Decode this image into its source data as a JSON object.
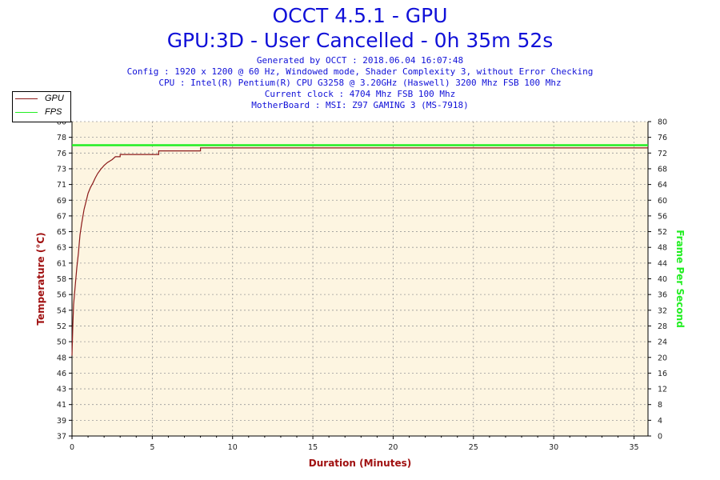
{
  "header": {
    "title": "OCCT 4.5.1 - GPU",
    "subtitle": "GPU:3D - User Cancelled - 0h 35m 52s",
    "info_lines": [
      "Generated by OCCT : 2018.06.04 16:07:48",
      "Config : 1920 x 1200 @ 60 Hz, Windowed mode, Shader Complexity 3, without Error Checking",
      "CPU : Intel(R) Pentium(R) CPU G3258 @ 3.20GHz (Haswell) 3200 Mhz FSB 100 Mhz",
      "Current clock : 4704 Mhz FSB 100 Mhz",
      "MotherBoard : MSI: Z97 GAMING 3 (MS-7918)"
    ]
  },
  "legend": {
    "items": [
      {
        "label": "GPU",
        "color": "#8b1a1a"
      },
      {
        "label": "FPS",
        "color": "#22ee22"
      }
    ]
  },
  "chart_data": {
    "type": "line",
    "xlabel": "Duration (Minutes)",
    "ylabel": "Temperature (°C)",
    "y2label": "Frame Per Second",
    "xlim": [
      0,
      35.87
    ],
    "xticks": [
      0,
      5,
      10,
      15,
      20,
      25,
      30,
      35
    ],
    "yticks": [
      "37",
      "39",
      "41",
      "43",
      "46",
      "48",
      "50",
      "52",
      "54",
      "56",
      "58",
      "61",
      "63",
      "65",
      "67",
      "69",
      "71",
      "73",
      "76",
      "78",
      "80"
    ],
    "ylim": [
      37,
      80
    ],
    "y2ticks": [
      0,
      4,
      8,
      12,
      16,
      20,
      24,
      28,
      32,
      36,
      40,
      44,
      48,
      52,
      56,
      60,
      64,
      68,
      72,
      76,
      80
    ],
    "y2lim": [
      0,
      80
    ],
    "grid": true,
    "legend_position": "top-left",
    "colors": {
      "temperature": "#8b1a1a",
      "fps": "#22ee22",
      "plot_background": "#fdf5e1",
      "axis_label": "#a01010",
      "y2_label": "#22ee22"
    },
    "series": [
      {
        "name": "GPU",
        "axis": "left",
        "x": [
          0,
          0.05,
          0.1,
          0.2,
          0.3,
          0.4,
          0.5,
          0.6,
          0.75,
          0.9,
          1.0,
          1.15,
          1.3,
          1.45,
          1.6,
          1.8,
          2.0,
          2.2,
          2.5,
          2.7,
          3.0,
          4.0,
          5.0,
          5.4,
          6.0,
          8.0,
          10.0,
          15.0,
          20.0,
          25.0,
          30.0,
          35.87
        ],
        "values": [
          48,
          52,
          55,
          57.5,
          60,
          62,
          64.5,
          66,
          68,
          69.3,
          70.2,
          71,
          71.6,
          72.3,
          72.9,
          73.5,
          74,
          74.4,
          74.8,
          75.2,
          75.5,
          75.5,
          75.5,
          76,
          76,
          76.4,
          76.4,
          76.4,
          76.4,
          76.4,
          76.4,
          76.4
        ]
      },
      {
        "name": "FPS",
        "axis": "right",
        "x": [
          0,
          35.87
        ],
        "values": [
          74,
          74
        ]
      }
    ]
  }
}
